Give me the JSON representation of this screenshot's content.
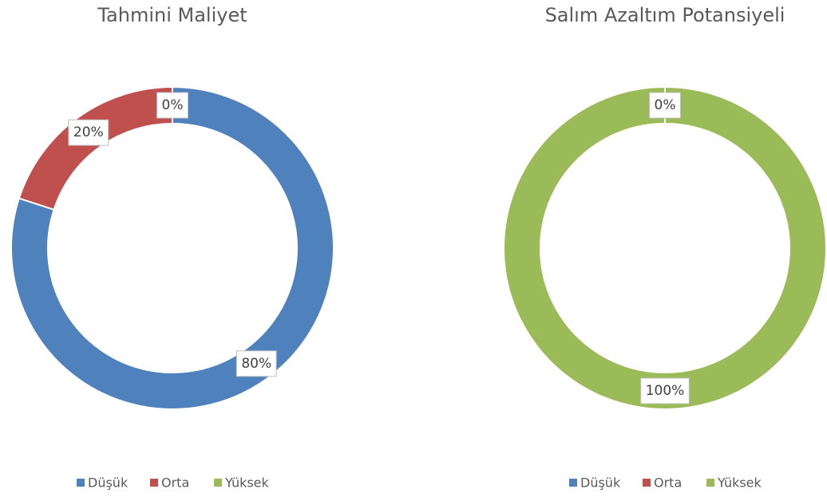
{
  "chart_data": [
    {
      "type": "donut",
      "title": "Tahmini Maliyet",
      "categories": [
        "Düşük",
        "Orta",
        "Yüksek"
      ],
      "colors": [
        "#4f81bd",
        "#c0504d",
        "#9bbb59"
      ],
      "values": [
        80,
        20,
        0
      ],
      "value_labels": [
        "80%",
        "20%",
        "0%"
      ],
      "legend": "bottom"
    },
    {
      "type": "donut",
      "title": "Salım Azaltım Potansiyeli",
      "categories": [
        "Düşük",
        "Orta",
        "Yüksek"
      ],
      "colors": [
        "#4f81bd",
        "#c0504d",
        "#9bbb59"
      ],
      "values": [
        0,
        0,
        100
      ],
      "value_labels": [
        "0%",
        "0%",
        "100%"
      ],
      "legend": "bottom"
    }
  ]
}
